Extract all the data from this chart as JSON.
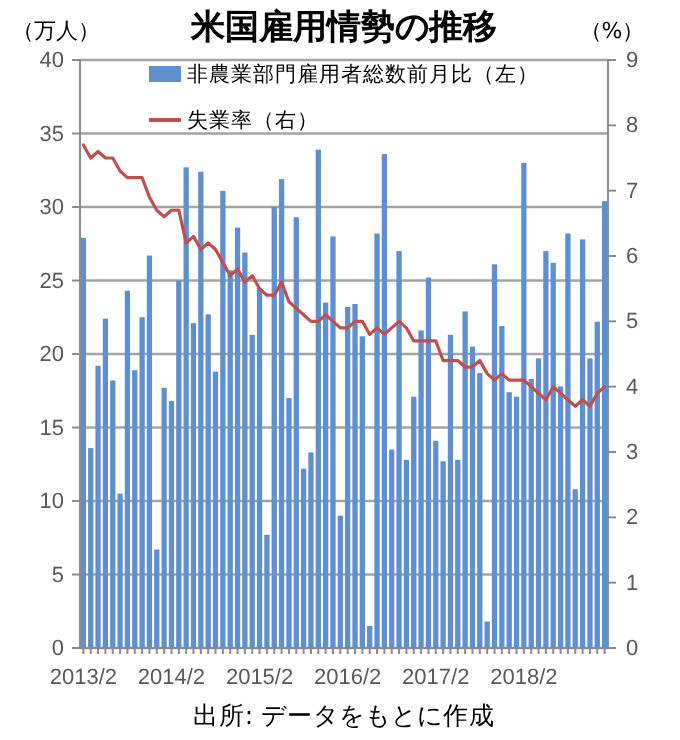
{
  "chart_data": {
    "type": "bar",
    "title": "米国雇用情勢の推移",
    "ylabel": "（万人）",
    "y2label": "（%）",
    "annotations": [
      "出所: データをもとに作成"
    ],
    "categories": [
      "2013/2",
      null,
      null,
      null,
      null,
      null,
      null,
      null,
      null,
      null,
      null,
      null,
      "2014/2",
      null,
      null,
      null,
      null,
      null,
      null,
      null,
      null,
      null,
      null,
      null,
      "2015/2",
      null,
      null,
      null,
      null,
      null,
      null,
      null,
      null,
      null,
      null,
      null,
      "2016/2",
      null,
      null,
      null,
      null,
      null,
      null,
      null,
      null,
      null,
      null,
      null,
      "2017/2",
      null,
      null,
      null,
      null,
      null,
      null,
      null,
      null,
      null,
      null,
      null,
      "2018/2",
      null,
      null,
      null,
      null,
      null,
      null,
      null,
      null,
      null,
      null,
      null
    ],
    "series": [
      {
        "name": "非農業部門雇用者総数前月比（左）",
        "color": "#5f8fcf",
        "values": [
          27.9,
          13.6,
          19.2,
          22.4,
          18.2,
          10.5,
          24.3,
          18.9,
          22.5,
          26.7,
          6.7,
          17.7,
          16.8,
          25.0,
          32.7,
          22.1,
          32.4,
          22.7,
          18.8,
          31.1,
          25.7,
          28.6,
          26.9,
          21.3,
          24.5,
          7.7,
          30.0,
          31.9,
          17.0,
          29.3,
          12.2,
          13.3,
          33.9,
          23.5,
          28.0,
          9.0,
          23.2,
          23.4,
          21.2,
          1.5,
          28.2,
          33.6,
          13.5,
          27.0,
          12.8,
          17.1,
          21.6,
          25.2,
          14.1,
          12.7,
          21.3,
          12.8,
          22.9,
          20.5,
          18.7,
          1.8,
          26.1,
          21.9,
          17.4,
          17.1,
          33.0,
          18.3,
          19.7,
          27.0,
          26.2,
          17.8,
          28.2,
          10.8,
          27.8,
          19.7,
          22.2,
          30.4
        ]
      },
      {
        "name": "失業率（右）",
        "type": "line",
        "axis": "y2",
        "color": "#c0504d",
        "values": [
          7.7,
          7.5,
          7.6,
          7.5,
          7.5,
          7.3,
          7.2,
          7.2,
          7.2,
          6.9,
          6.7,
          6.6,
          6.7,
          6.7,
          6.2,
          6.3,
          6.1,
          6.2,
          6.1,
          5.9,
          5.7,
          5.8,
          5.6,
          5.7,
          5.5,
          5.4,
          5.4,
          5.6,
          5.3,
          5.2,
          5.1,
          5.0,
          5.0,
          5.1,
          5.0,
          4.9,
          4.9,
          5.0,
          5.0,
          4.8,
          4.9,
          4.8,
          4.9,
          5.0,
          4.9,
          4.7,
          4.7,
          4.7,
          4.7,
          4.4,
          4.4,
          4.4,
          4.3,
          4.3,
          4.4,
          4.2,
          4.1,
          4.2,
          4.1,
          4.1,
          4.1,
          4.0,
          3.9,
          3.8,
          4.0,
          3.9,
          3.8,
          3.7,
          3.8,
          3.7,
          3.9,
          4.0
        ]
      }
    ],
    "ylim": [
      0,
      40
    ],
    "yticks": [
      0,
      5,
      10,
      15,
      20,
      25,
      30,
      35,
      40
    ],
    "y2lim": [
      0,
      9
    ],
    "y2ticks": [
      0,
      1,
      2,
      3,
      4,
      5,
      6,
      7,
      8,
      9
    ],
    "grid": "y",
    "legend": "top"
  }
}
